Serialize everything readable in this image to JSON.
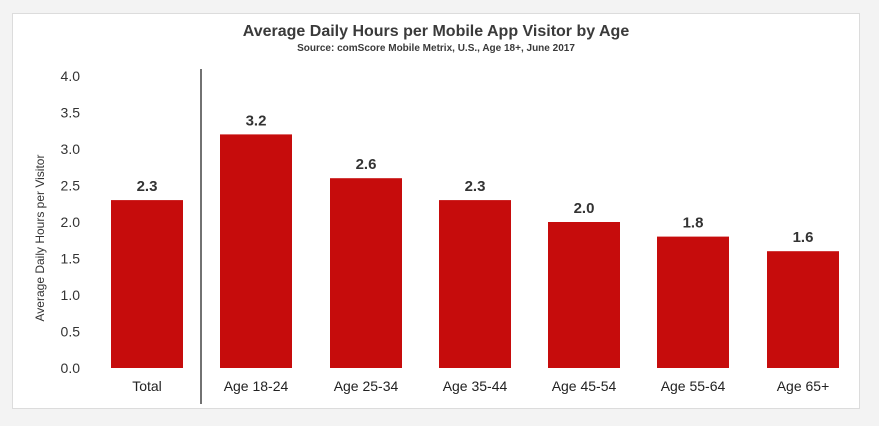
{
  "chart_data": {
    "type": "bar",
    "title": "Average Daily Hours per Mobile App Visitor by Age",
    "subtitle": "Source: comScore Mobile Metrix, U.S., Age 18+, June 2017",
    "xlabel": "",
    "ylabel": "Average Daily Hours per Visitor",
    "categories": [
      "Total",
      "Age 18-24",
      "Age 25-34",
      "Age 35-44",
      "Age 45-54",
      "Age 55-64",
      "Age 65+"
    ],
    "values": [
      2.3,
      3.2,
      2.6,
      2.3,
      2.0,
      1.8,
      1.6
    ],
    "value_labels": [
      "2.3",
      "3.2",
      "2.6",
      "2.3",
      "2.0",
      "1.8",
      "1.6"
    ],
    "ylim": [
      0,
      4.0
    ],
    "yticks": [
      "0.0",
      "0.5",
      "1.0",
      "1.5",
      "2.0",
      "2.5",
      "3.0",
      "3.5",
      "4.0"
    ],
    "grid": false,
    "legend": "none",
    "separator_after_category": "Total",
    "colors": {
      "bar": "#c60c0c",
      "separator": "#444444",
      "background": "#ffffff"
    }
  }
}
